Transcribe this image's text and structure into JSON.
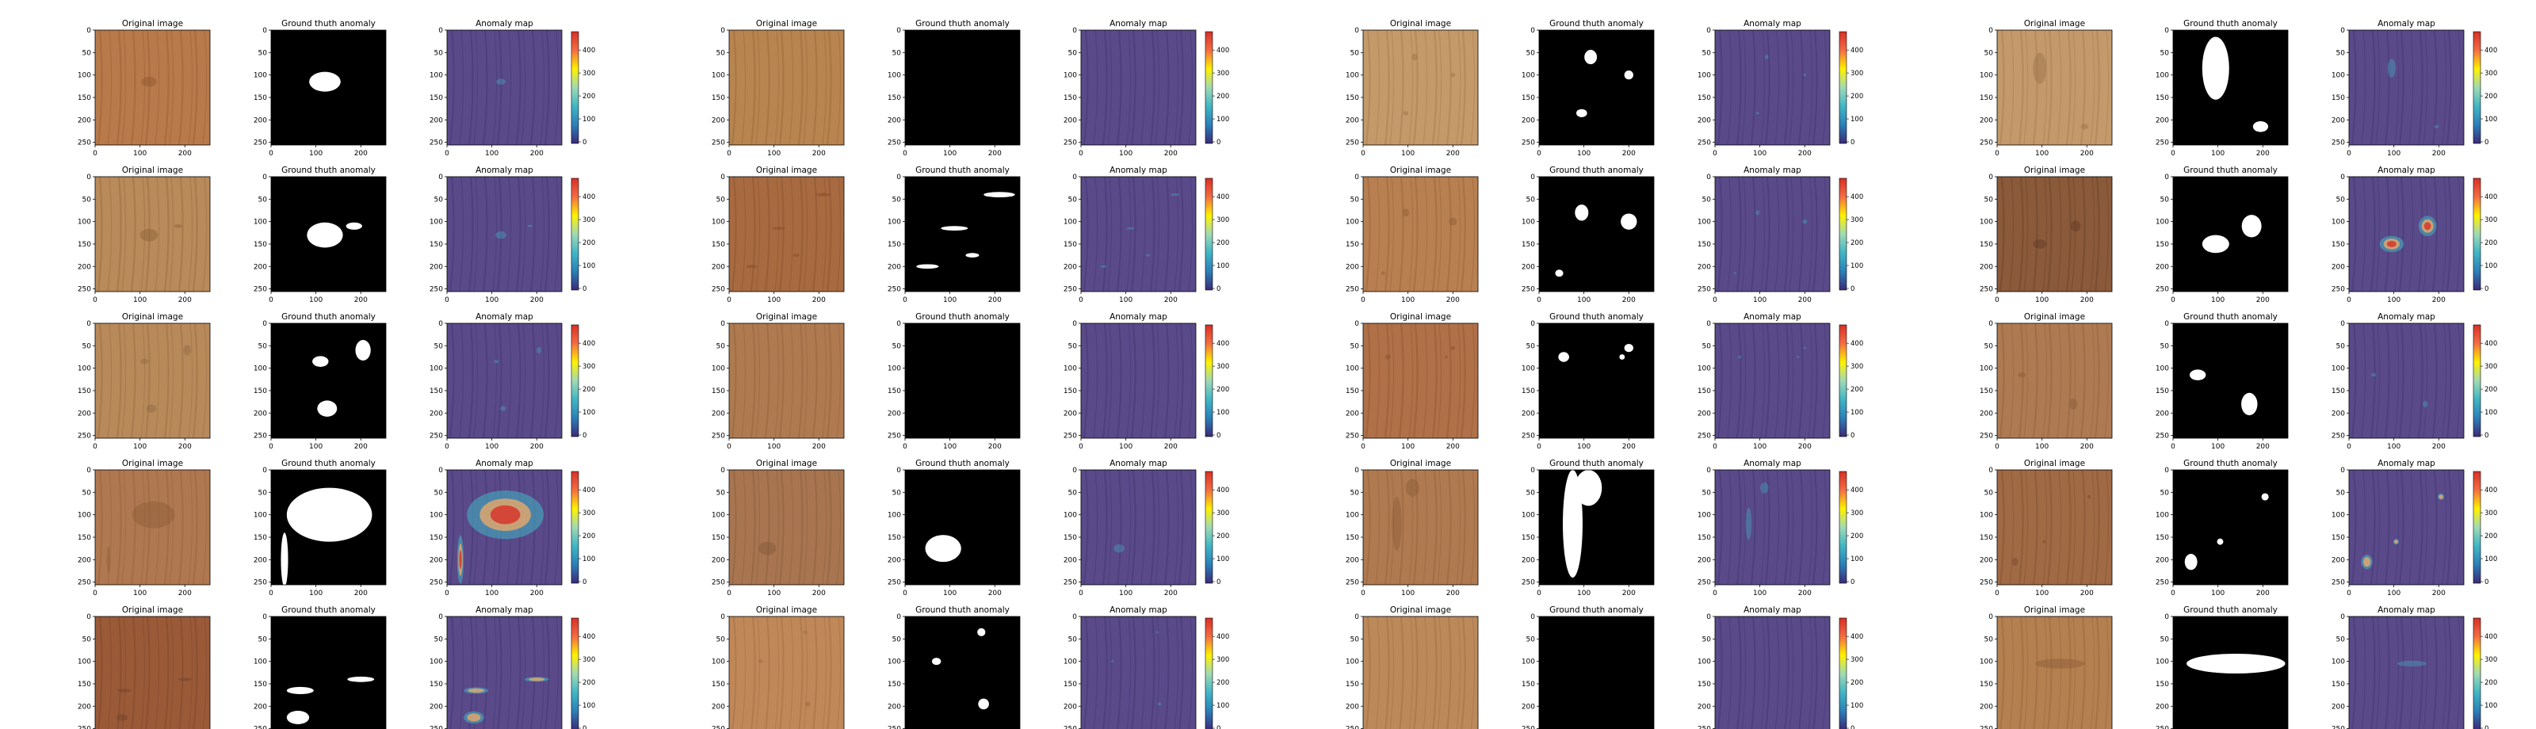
{
  "titles": {
    "original": "Original image",
    "ground_truth": "Ground thuth anomaly",
    "anomaly": "Anomaly map"
  },
  "axis": {
    "x_ticks": [
      "0",
      "100",
      "200"
    ],
    "y_ticks": [
      "0",
      "50",
      "100",
      "150",
      "200",
      "250"
    ]
  },
  "colorbar": {
    "ticks": [
      "0",
      "100",
      "200",
      "300",
      "400"
    ],
    "colors": [
      "#3b2a78",
      "#2c7fb8",
      "#41b6c4",
      "#a1dab4",
      "#fff200",
      "#f46d43",
      "#d73027"
    ]
  },
  "colors": {
    "map_base": "#5a4a8a",
    "mask_bg": "#000000",
    "mask_fg": "#ffffff",
    "hot": "#d73027",
    "warm": "#fdae61",
    "cool": "#41b6c4"
  },
  "groups": [
    {
      "rows": [
        {
          "wood": "#b87a4a",
          "wood_dark": "#8e5530",
          "masks": [
            {
              "cx": 120,
              "cy": 115,
              "rx": 35,
              "ry": 22
            }
          ],
          "hot": 0
        },
        {
          "wood": "#b98a5a",
          "wood_dark": "#8a6038",
          "masks": [
            {
              "cx": 120,
              "cy": 130,
              "rx": 40,
              "ry": 28
            },
            {
              "cx": 185,
              "cy": 110,
              "rx": 18,
              "ry": 8
            }
          ],
          "hot": 0
        },
        {
          "wood": "#b88a5a",
          "wood_dark": "#8c6540",
          "masks": [
            {
              "cx": 110,
              "cy": 85,
              "rx": 18,
              "ry": 12
            },
            {
              "cx": 205,
              "cy": 60,
              "rx": 17,
              "ry": 23
            },
            {
              "cx": 125,
              "cy": 190,
              "rx": 22,
              "ry": 18
            }
          ],
          "hot": 0
        },
        {
          "wood": "#b07850",
          "wood_dark": "#8a5a38",
          "masks": [
            {
              "cx": 130,
              "cy": 100,
              "rx": 95,
              "ry": 60
            },
            {
              "cx": 30,
              "cy": 200,
              "rx": 8,
              "ry": 60
            }
          ],
          "hot": 2
        },
        {
          "wood": "#9a5a38",
          "wood_dark": "#70402a",
          "masks": [
            {
              "cx": 65,
              "cy": 165,
              "rx": 30,
              "ry": 8
            },
            {
              "cx": 200,
              "cy": 140,
              "rx": 30,
              "ry": 6
            },
            {
              "cx": 60,
              "cy": 225,
              "rx": 25,
              "ry": 15
            }
          ],
          "hot": 1
        }
      ]
    },
    {
      "rows": [
        {
          "wood": "#b8844f",
          "wood_dark": "#915f35",
          "masks": [],
          "hot": 0
        },
        {
          "wood": "#a86a40",
          "wood_dark": "#7e4c2a",
          "masks": [
            {
              "cx": 210,
              "cy": 40,
              "rx": 35,
              "ry": 6
            },
            {
              "cx": 110,
              "cy": 115,
              "rx": 30,
              "ry": 5
            },
            {
              "cx": 50,
              "cy": 200,
              "rx": 25,
              "ry": 5
            },
            {
              "cx": 150,
              "cy": 175,
              "rx": 15,
              "ry": 5
            }
          ],
          "hot": 0
        },
        {
          "wood": "#b07a50",
          "wood_dark": "#8a5a38",
          "masks": [],
          "hot": 0
        },
        {
          "wood": "#a87550",
          "wood_dark": "#80583a",
          "masks": [
            {
              "cx": 85,
              "cy": 175,
              "rx": 40,
              "ry": 30
            }
          ],
          "hot": 0
        },
        {
          "wood": "#c08858",
          "wood_dark": "#966540",
          "masks": [
            {
              "cx": 170,
              "cy": 35,
              "rx": 9,
              "ry": 9
            },
            {
              "cx": 70,
              "cy": 100,
              "rx": 10,
              "ry": 8
            },
            {
              "cx": 175,
              "cy": 195,
              "rx": 12,
              "ry": 12
            }
          ],
          "hot": 0
        }
      ]
    },
    {
      "rows": [
        {
          "wood": "#c49a6a",
          "wood_dark": "#9a7048",
          "masks": [
            {
              "cx": 115,
              "cy": 60,
              "rx": 14,
              "ry": 16
            },
            {
              "cx": 95,
              "cy": 185,
              "rx": 12,
              "ry": 9
            },
            {
              "cx": 200,
              "cy": 100,
              "rx": 10,
              "ry": 10
            }
          ],
          "hot": 0
        },
        {
          "wood": "#b88050",
          "wood_dark": "#8c5a32",
          "masks": [
            {
              "cx": 95,
              "cy": 80,
              "rx": 15,
              "ry": 18
            },
            {
              "cx": 200,
              "cy": 100,
              "rx": 18,
              "ry": 18
            },
            {
              "cx": 45,
              "cy": 215,
              "rx": 9,
              "ry": 8
            }
          ],
          "hot": 0
        },
        {
          "wood": "#b07048",
          "wood_dark": "#84502e",
          "masks": [
            {
              "cx": 55,
              "cy": 75,
              "rx": 12,
              "ry": 11
            },
            {
              "cx": 200,
              "cy": 55,
              "rx": 10,
              "ry": 9
            },
            {
              "cx": 185,
              "cy": 75,
              "rx": 6,
              "ry": 6
            }
          ],
          "hot": 0
        },
        {
          "wood": "#b07a50",
          "wood_dark": "#8a5a38",
          "masks": [
            {
              "cx": 75,
              "cy": 120,
              "rx": 22,
              "ry": 120
            },
            {
              "cx": 110,
              "cy": 40,
              "rx": 30,
              "ry": 40
            }
          ],
          "hot": 0
        },
        {
          "wood": "#bc8a5a",
          "wood_dark": "#936538",
          "masks": [],
          "hot": 0
        }
      ]
    },
    {
      "rows": [
        {
          "wood": "#c49a6c",
          "wood_dark": "#9a7048",
          "masks": [
            {
              "cx": 95,
              "cy": 85,
              "rx": 30,
              "ry": 70
            },
            {
              "cx": 195,
              "cy": 215,
              "rx": 17,
              "ry": 12
            }
          ],
          "hot": 0
        },
        {
          "wood": "#8a5a3a",
          "wood_dark": "#5e3a24",
          "masks": [
            {
              "cx": 175,
              "cy": 110,
              "rx": 22,
              "ry": 25
            },
            {
              "cx": 95,
              "cy": 150,
              "rx": 30,
              "ry": 20
            }
          ],
          "hot": 2
        },
        {
          "wood": "#ae7a52",
          "wood_dark": "#855a38",
          "masks": [
            {
              "cx": 55,
              "cy": 115,
              "rx": 18,
              "ry": 12
            },
            {
              "cx": 170,
              "cy": 180,
              "rx": 18,
              "ry": 25
            }
          ],
          "hot": 0
        },
        {
          "wood": "#a06a45",
          "wood_dark": "#74482c",
          "masks": [
            {
              "cx": 205,
              "cy": 60,
              "rx": 8,
              "ry": 8
            },
            {
              "cx": 105,
              "cy": 160,
              "rx": 7,
              "ry": 7
            },
            {
              "cx": 40,
              "cy": 205,
              "rx": 14,
              "ry": 18
            }
          ],
          "hot": 1
        },
        {
          "wood": "#b48050",
          "wood_dark": "#8c5c35",
          "masks": [
            {
              "cx": 140,
              "cy": 105,
              "rx": 110,
              "ry": 22
            }
          ],
          "hot": 0
        }
      ]
    }
  ]
}
